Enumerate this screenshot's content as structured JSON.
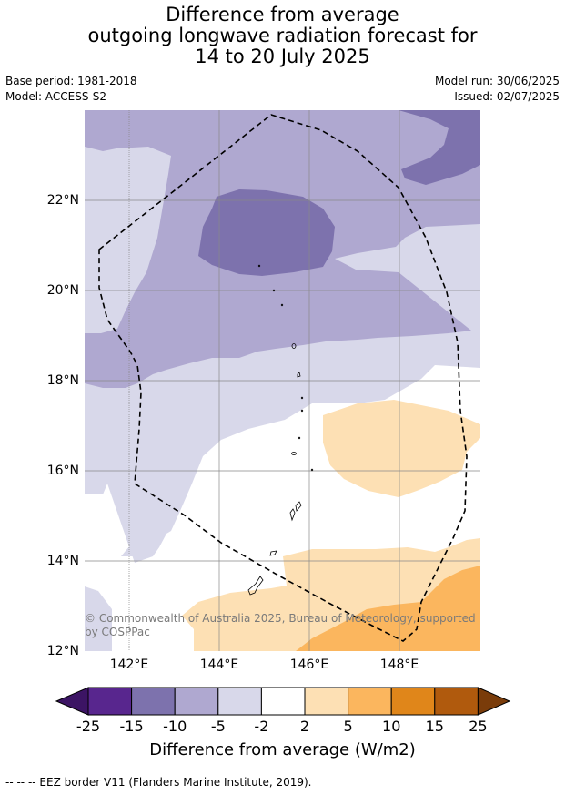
{
  "header": {
    "title_line1": "Difference from average",
    "title_line2": "outgoing longwave radiation forecast for",
    "title_line3": "14 to 20 July 2025",
    "base_period": "Base period: 1981-2018",
    "model": "Model: ACCESS-S2",
    "model_run": "Model run: 30/06/2025",
    "issued": "Issued: 02/07/2025"
  },
  "map": {
    "lat_labels": [
      "12°N",
      "14°N",
      "16°N",
      "18°N",
      "20°N",
      "22°N"
    ],
    "lon_labels": [
      "142°E",
      "144°E",
      "146°E",
      "148°E"
    ],
    "copyright_line1": "© Commonwealth of Australia 2025, Bureau of Meteorology, supported",
    "copyright_line2": "by COSPPac"
  },
  "legend": {
    "ticks": [
      "-25",
      "-15",
      "-10",
      "-5",
      "-2",
      "2",
      "5",
      "10",
      "15",
      "25"
    ],
    "colors": [
      "#3c1464",
      "#58268e",
      "#7d72ad",
      "#afa8d0",
      "#d8d8ea",
      "#ffffff",
      "#fde0b4",
      "#fbb65e",
      "#e0861a",
      "#b05a0d",
      "#7a3c0a"
    ],
    "title": "Difference from average (W/m2)"
  },
  "footer": {
    "eez_note": "--  --  -- EEZ border V11 (Flanders Marine Institute, 2019)."
  }
}
